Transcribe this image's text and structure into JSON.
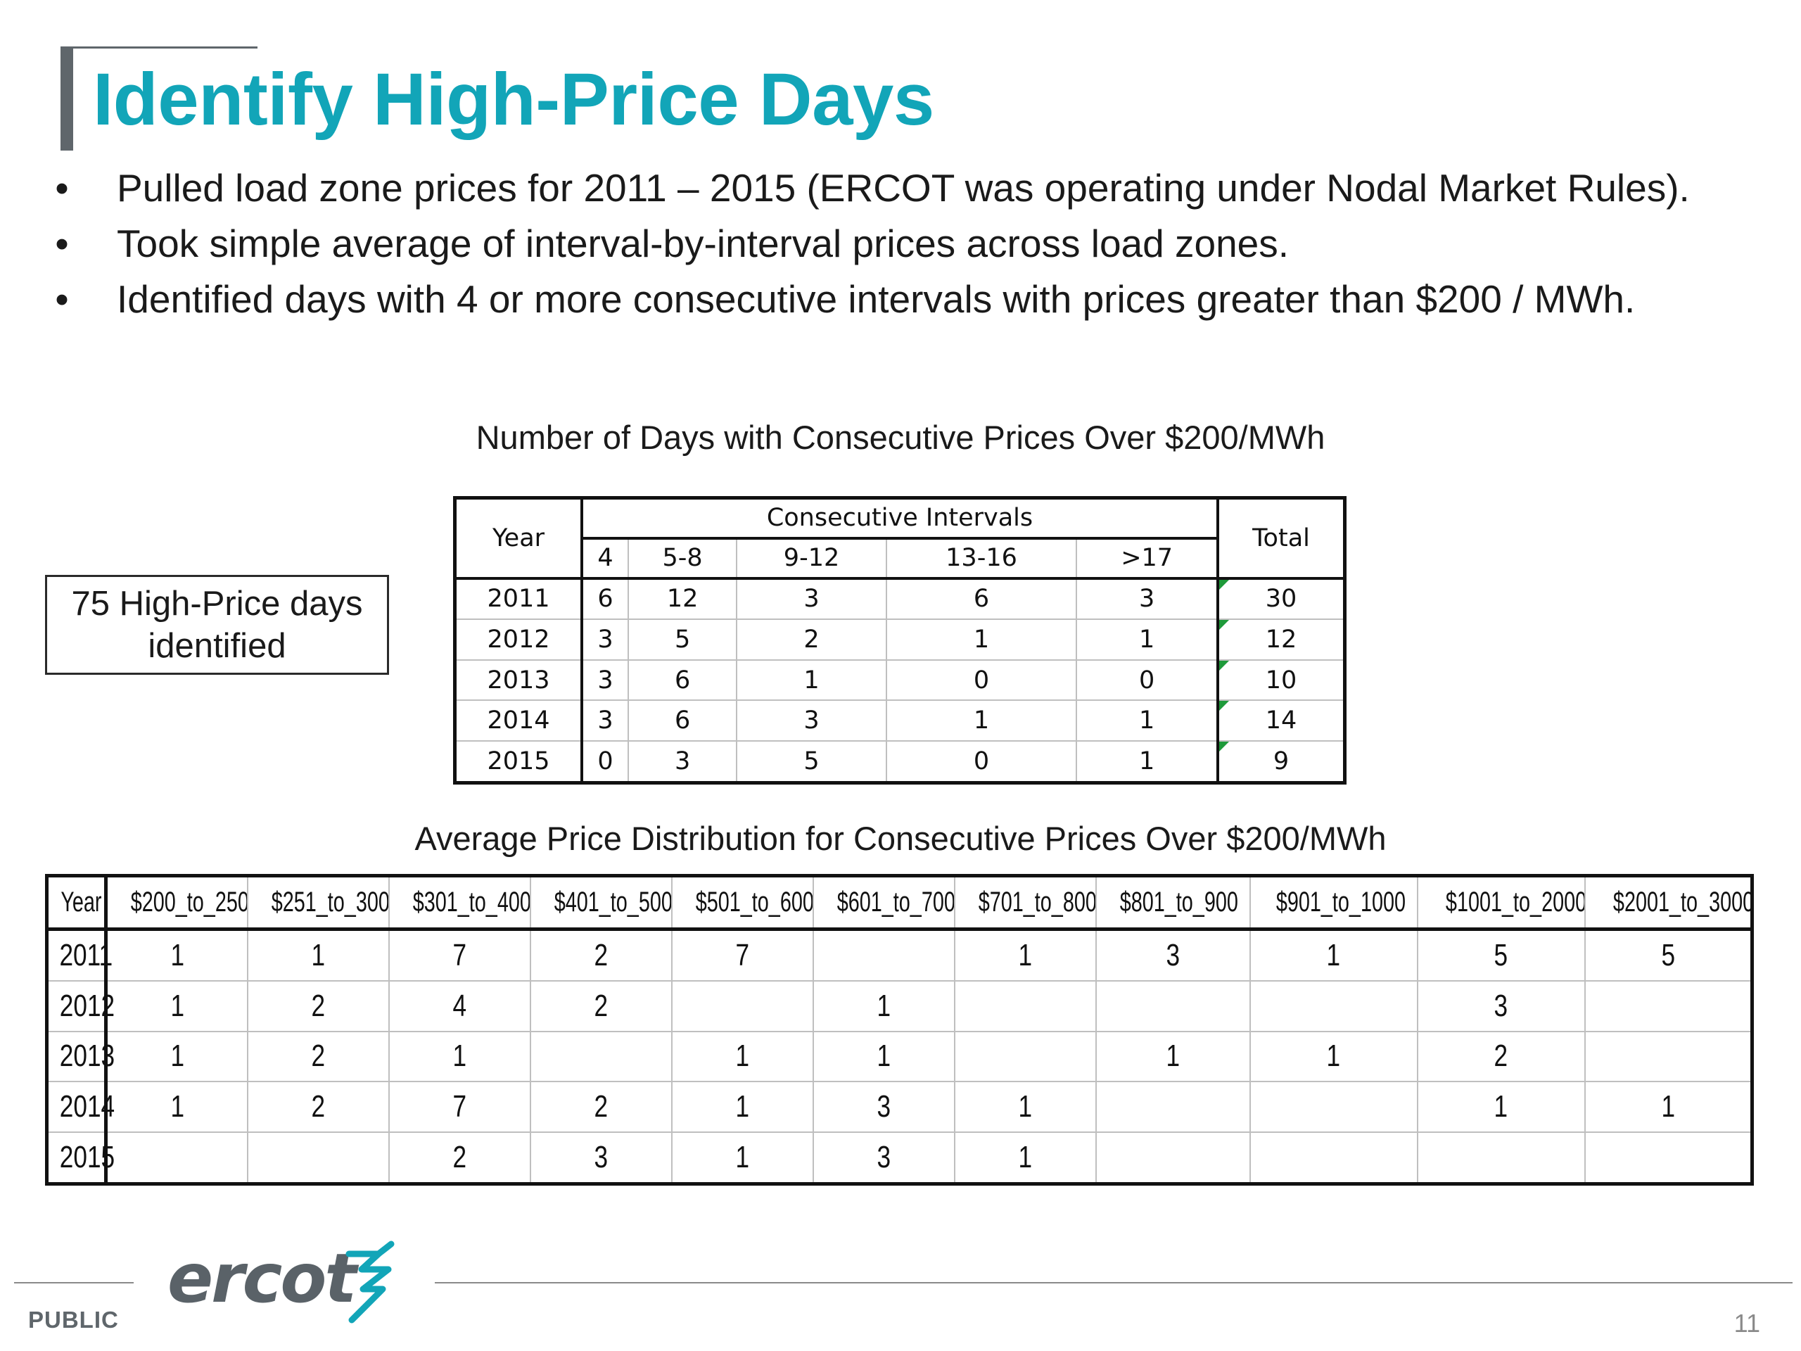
{
  "slide": {
    "title": "Identify High-Price Days",
    "bullets": [
      "Pulled load zone prices for 2011 – 2015 (ERCOT was operating under Nodal Market Rules).",
      "Took simple average of interval-by-interval prices across load zones.",
      "Identified days with 4 or more consecutive intervals with prices greater than $200 / MWh."
    ],
    "bullet_symbol": "•",
    "note_box": "75 High-Price days identified",
    "table1": {
      "caption": "Number of Days with Consecutive Prices Over $200/MWh",
      "year_header": "Year",
      "group_header": "Consecutive Intervals",
      "total_header": "Total",
      "interval_headers": [
        "4",
        "5-8",
        "9-12",
        "13-16",
        ">17"
      ],
      "rows": [
        {
          "year": "2011",
          "values": [
            "6",
            "12",
            "3",
            "6",
            "3"
          ],
          "total": "30"
        },
        {
          "year": "2012",
          "values": [
            "3",
            "5",
            "2",
            "1",
            "1"
          ],
          "total": "12"
        },
        {
          "year": "2013",
          "values": [
            "3",
            "6",
            "1",
            "0",
            "0"
          ],
          "total": "10"
        },
        {
          "year": "2014",
          "values": [
            "3",
            "6",
            "3",
            "1",
            "1"
          ],
          "total": "14"
        },
        {
          "year": "2015",
          "values": [
            "0",
            "3",
            "5",
            "0",
            "1"
          ],
          "total": "9"
        }
      ]
    },
    "table2": {
      "caption": "Average Price Distribution for Consecutive Prices Over $200/MWh",
      "headers": [
        "Year",
        "$200_to_250",
        "$251_to_300",
        "$301_to_400",
        "$401_to_500",
        "$501_to_600",
        "$601_to_700",
        "$701_to_800",
        "$801_to_900",
        "$901_to_1000",
        "$1001_to_2000",
        "$2001_to_3000"
      ],
      "rows": [
        [
          "2011",
          "1",
          "1",
          "7",
          "2",
          "7",
          "",
          "1",
          "3",
          "1",
          "5",
          "5"
        ],
        [
          "2012",
          "1",
          "2",
          "4",
          "2",
          "",
          "1",
          "",
          "",
          "",
          "3",
          ""
        ],
        [
          "2013",
          "1",
          "2",
          "1",
          "",
          "1",
          "1",
          "",
          "1",
          "1",
          "2",
          ""
        ],
        [
          "2014",
          "1",
          "2",
          "7",
          "2",
          "1",
          "3",
          "1",
          "",
          "",
          "1",
          "1"
        ],
        [
          "2015",
          "",
          "",
          "2",
          "3",
          "1",
          "3",
          "1",
          "",
          "",
          "",
          ""
        ]
      ]
    },
    "footer": {
      "logo_text": "ercot",
      "classification": "PUBLIC",
      "page_number": "11"
    },
    "colors": {
      "title": "#12a5b8",
      "logo_text": "#5a6268",
      "logo_mark": "#12a5b8",
      "accent_bar": "#5f666b",
      "cell_tick": "#1e9a3a"
    }
  }
}
